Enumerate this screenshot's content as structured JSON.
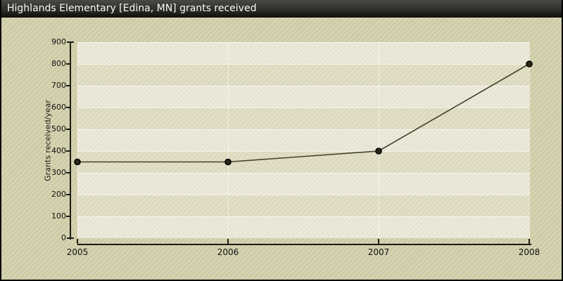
{
  "window": {
    "title": "Highlands Elementary [Edina, MN] grants received"
  },
  "chart_data": {
    "type": "line",
    "title": "Highlands Elementary [Edina, MN] grants received",
    "x": [
      2005,
      2006,
      2007,
      2008
    ],
    "x_tick_labels": [
      "2005",
      "2006",
      "2007",
      "2008"
    ],
    "series": [
      {
        "name": "Grants received",
        "values": [
          350,
          350,
          400,
          800
        ]
      }
    ],
    "xlabel": "",
    "ylabel": "Grants received/year",
    "ylim": [
      0,
      900
    ],
    "y_ticks": [
      0,
      100,
      200,
      300,
      400,
      500,
      600,
      700,
      800,
      900
    ],
    "legend_position": "none",
    "grid": "alternating horizontal bands every 100 units with light boundary lines; faint vertical lines at each year",
    "colors": {
      "title_bar_text": "#f8f8f6",
      "title_bar_top": "#4a4a44",
      "title_bar_bottom": "#0e0e0a",
      "background": "#d3d0ae",
      "plot_background": "#e3e1d1",
      "line": "#45422c",
      "marker_fill": "#2b2918",
      "marker_outline": "#000000",
      "axis": "#1c1c12",
      "tick_text": "#111111"
    }
  }
}
